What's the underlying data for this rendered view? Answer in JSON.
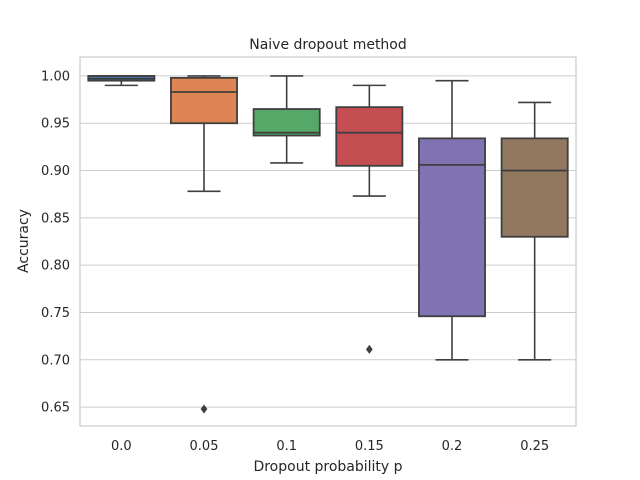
{
  "chart_data": {
    "type": "box",
    "title": "Naive dropout method",
    "xlabel": "Dropout probability p",
    "ylabel": "Accuracy",
    "ylim": [
      0.63,
      1.02
    ],
    "yticks": [
      0.65,
      0.7,
      0.75,
      0.8,
      0.85,
      0.9,
      0.95,
      1.0
    ],
    "ytick_labels": [
      "0.65",
      "0.70",
      "0.75",
      "0.80",
      "0.85",
      "0.90",
      "0.95",
      "1.00"
    ],
    "grid": "horizontal",
    "categories": [
      "0.0",
      "0.05",
      "0.1",
      "0.15",
      "0.2",
      "0.25"
    ],
    "boxes": [
      {
        "category": "0.0",
        "whisker_low": 0.99,
        "q1": 0.995,
        "median": 0.997,
        "q3": 1.0,
        "whisker_high": 1.0,
        "outliers": [],
        "color": "#4c72b0"
      },
      {
        "category": "0.05",
        "whisker_low": 0.878,
        "q1": 0.95,
        "median": 0.983,
        "q3": 0.998,
        "whisker_high": 1.0,
        "outliers": [
          0.648
        ],
        "color": "#dd8452"
      },
      {
        "category": "0.1",
        "whisker_low": 0.908,
        "q1": 0.937,
        "median": 0.94,
        "q3": 0.965,
        "whisker_high": 1.0,
        "outliers": [],
        "color": "#55a868"
      },
      {
        "category": "0.15",
        "whisker_low": 0.873,
        "q1": 0.905,
        "median": 0.94,
        "q3": 0.967,
        "whisker_high": 0.99,
        "outliers": [
          0.711
        ],
        "color": "#c44e52"
      },
      {
        "category": "0.2",
        "whisker_low": 0.7,
        "q1": 0.746,
        "median": 0.906,
        "q3": 0.934,
        "whisker_high": 0.995,
        "outliers": [],
        "color": "#8172b3"
      },
      {
        "category": "0.25",
        "whisker_low": 0.7,
        "q1": 0.83,
        "median": 0.9,
        "q3": 0.934,
        "whisker_high": 0.972,
        "outliers": [],
        "color": "#937860"
      }
    ],
    "line_color": "#3f3f3f"
  }
}
